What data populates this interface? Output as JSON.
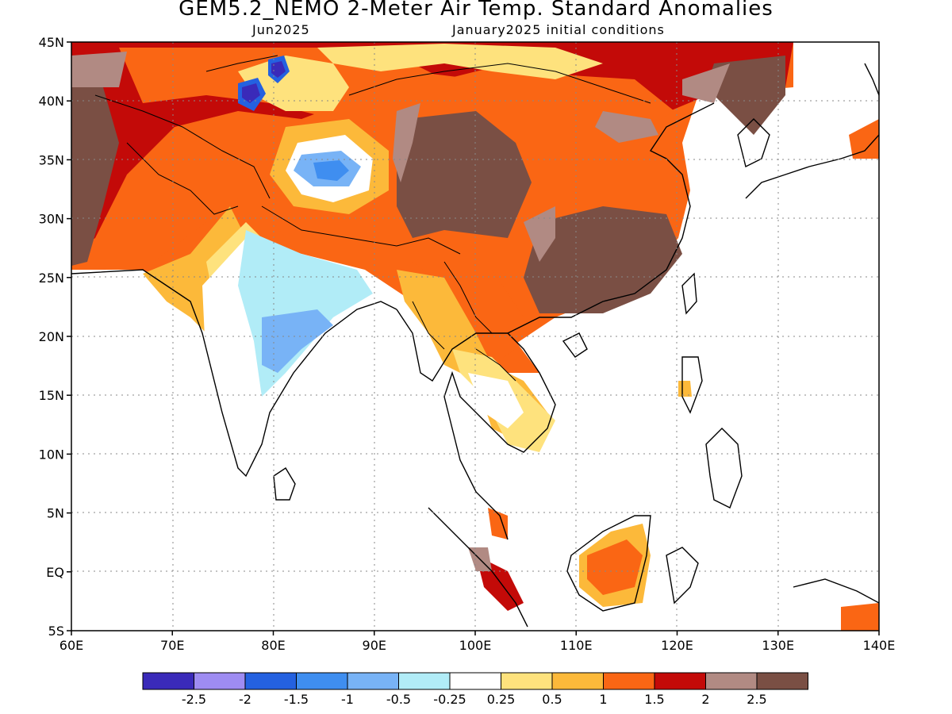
{
  "header": {
    "title": "GEM5.2_NEMO 2-Meter Air Temp. Standard Anomalies",
    "valid_month": "Jun2025",
    "init": "January2025 initial conditions"
  },
  "axes": {
    "lat_labels": [
      "45N",
      "40N",
      "35N",
      "30N",
      "25N",
      "20N",
      "15N",
      "10N",
      "5N",
      "EQ",
      "5S"
    ],
    "lon_labels": [
      "60E",
      "70E",
      "80E",
      "90E",
      "100E",
      "110E",
      "120E",
      "130E",
      "140E"
    ]
  },
  "legend": {
    "colors": [
      "#3a2ab9",
      "#9e8cf2",
      "#2461e0",
      "#3f8ef0",
      "#78b3f6",
      "#b1ecf7",
      "#ffffff",
      "#fee27d",
      "#fcb93a",
      "#fa6614",
      "#c30a08",
      "#b18a83",
      "#7a4f44"
    ],
    "labels": [
      "-2.5",
      "-2",
      "-1.5",
      "-1",
      "-0.5",
      "-0.25",
      "0.25",
      "0.5",
      "1",
      "1.5",
      "2",
      "2.5"
    ]
  },
  "chart_data": {
    "type": "heatmap",
    "variable": "2-Meter Air Temp. Standard Anomalies",
    "lat_range": [
      -5,
      45
    ],
    "lon_range": [
      60,
      140
    ],
    "grid": true,
    "bins": [
      -2.5,
      -2,
      -1.5,
      -1,
      -0.5,
      -0.25,
      0.25,
      0.5,
      1,
      1.5,
      2,
      2.5
    ]
  }
}
